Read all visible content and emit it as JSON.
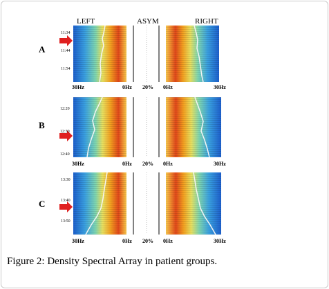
{
  "header": {
    "left": "LEFT",
    "asym": "ASYM",
    "right": "RIGHT"
  },
  "caption": {
    "label": "Figure 2:",
    "text": " Density Spectral Array in patient groups."
  },
  "groups": [
    {
      "label": "A",
      "times": [
        "11:34",
        "11:44",
        "11:54"
      ],
      "freq_left": "30Hz",
      "freq_zero_left": "0Hz",
      "asym_pct": "20%",
      "freq_zero_right": "0Hz",
      "freq_right": "30Hz"
    },
    {
      "label": "B",
      "times": [
        "12:20",
        "12:30",
        "12:40"
      ],
      "freq_left": "30Hz",
      "freq_zero_left": "0Hz",
      "asym_pct": "20%",
      "freq_zero_right": "0Hz",
      "freq_right": "30Hz"
    },
    {
      "label": "C",
      "times": [
        "13:30",
        "13:40",
        "13:50"
      ],
      "freq_left": "30Hz",
      "freq_zero_left": "0Hz",
      "asym_pct": "20%",
      "freq_zero_right": "0Hz",
      "freq_right": "30Hz"
    }
  ],
  "colors": {
    "arrow": "#e02020",
    "low": "#1e6fd6",
    "high": "#d42a10"
  }
}
